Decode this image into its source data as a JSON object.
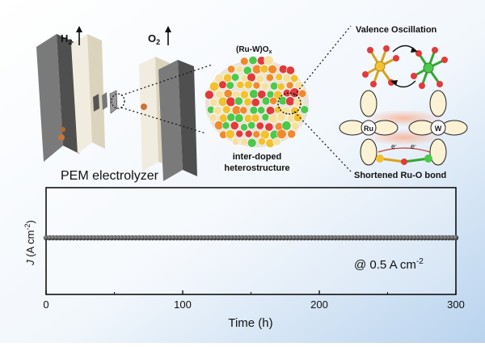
{
  "labels": {
    "h2": "H",
    "h2_sub": "2",
    "o2": "O",
    "o2_sub": "2",
    "oxide": "(Ru-W)O",
    "oxide_sub": "x",
    "interdoped_line1": "inter-doped",
    "interdoped_line2": "heterostructure",
    "pem": "PEM electrolyzer",
    "valence": "Valence Oscillation",
    "shortened": "Shortened Ru-O bond",
    "ru": "Ru",
    "w": "W",
    "e1": "e",
    "e2": "e"
  },
  "chart_data": {
    "type": "scatter",
    "x_ticks": [
      "0",
      "100",
      "200",
      "300"
    ],
    "xlabel": "Time (h)",
    "ylabel_italic": "J",
    "ylabel_rest": " (A cm",
    "ylabel_exp": "-2",
    "ylabel_close": ")",
    "annotation": "@ 0.5 A cm",
    "annotation_exp": "-2",
    "xlim": [
      0,
      300
    ],
    "series": [
      {
        "x_start": 0,
        "x_end": 300,
        "y": 0.5,
        "points": 120
      }
    ]
  },
  "colors": {
    "background_fade": "#b9d3ee",
    "marker_fill": "#3a3a3a",
    "plate_dark": "#5a5a5a",
    "plate_light": "#e8e2d2",
    "ru_atom": "#f2c12e",
    "w_atom": "#4cc84a",
    "o_atom": "#e23a3a"
  }
}
